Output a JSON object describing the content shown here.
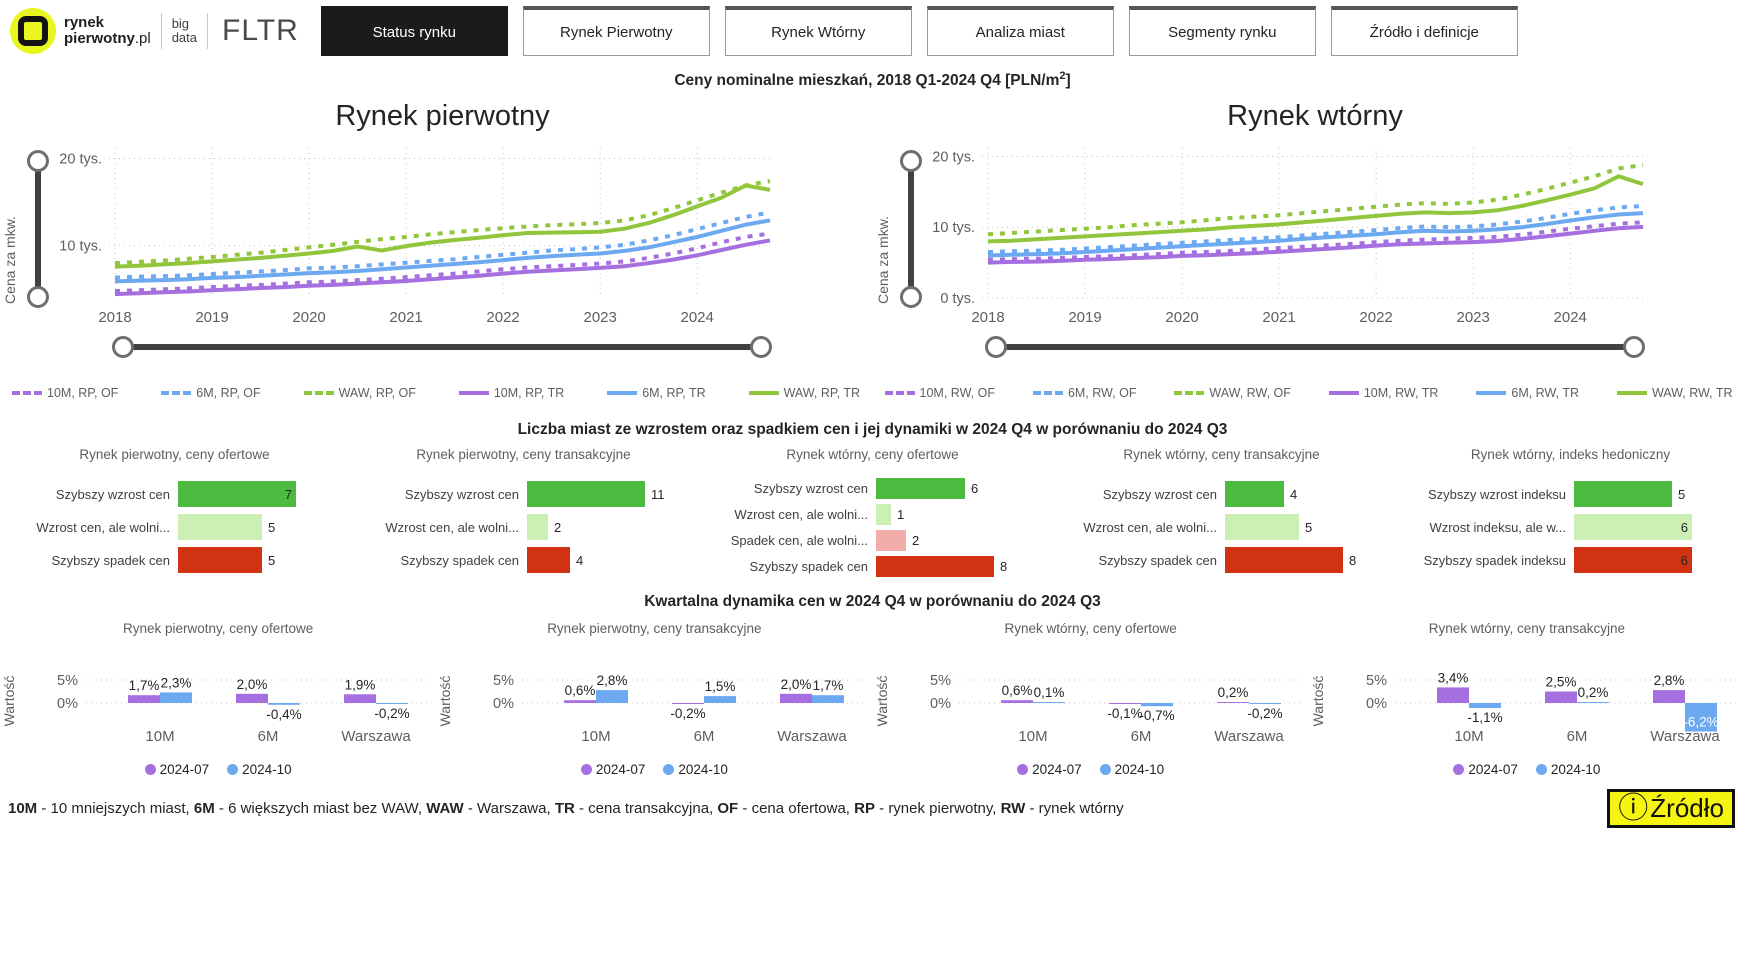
{
  "header": {
    "logo": {
      "brand_top": "rynek",
      "brand_bottom_bold": "pierwotny",
      "brand_bottom_light": ".pl",
      "big": "big",
      "data": "data",
      "fltr": "FLTR"
    },
    "tabs": [
      {
        "label": "Status rynku",
        "active": true
      },
      {
        "label": "Rynek Pierwotny",
        "active": false
      },
      {
        "label": "Rynek Wtórny",
        "active": false
      },
      {
        "label": "Analiza miast",
        "active": false
      },
      {
        "label": "Segmenty rynku",
        "active": false
      },
      {
        "label": "Źródło i definicje",
        "active": false
      }
    ]
  },
  "main_title": {
    "prefix": "Ceny nominalne mieszkań, 2018 Q1-2024 Q4 [PLN/m",
    "sup": "2",
    "suffix": "]"
  },
  "counts_section_title": "Liczba miast ze wzrostem oraz spadkiem cen i jej dynamiki w 2024 Q4 w porównaniu do 2024 Q3",
  "dynamics_section_title": "Kwartalna dynamika cen w 2024 Q4 w porównaniu do 2024 Q3",
  "colors": {
    "purple": "#A66FE0",
    "blue": "#6CA9F0",
    "green": "#91C63C",
    "dark_green": "#4CBB3F",
    "light_green": "#CBEFB4",
    "pink": "#F2ACA9",
    "red": "#D13212",
    "slider": "#414141",
    "grid": "#C8C6C4",
    "text_dark": "#252423",
    "text_gray": "#605E5C",
    "accent_yellow": "#F5F50F",
    "logo_yellow": "#E9F51F"
  },
  "chart_data": [
    {
      "type": "line",
      "title": "Rynek pierwotny",
      "ylabel": "Cena za mkw.",
      "ymin": 4.0,
      "ymax": 21.2,
      "x_tick_labels": [
        "2018",
        "2019",
        "2020",
        "2021",
        "2022",
        "2023",
        "2024"
      ],
      "y_ticks": [
        {
          "label": "20 tys.",
          "value": 20
        },
        {
          "label": "10 tys.",
          "value": 10
        }
      ],
      "series": [
        {
          "name": "10M, RP, OF",
          "color": "#A66FE0",
          "dashed": true,
          "values": [
            4.8,
            4.9,
            5.0,
            5.1,
            5.25,
            5.4,
            5.5,
            5.65,
            5.8,
            5.9,
            6.05,
            6.2,
            6.4,
            6.6,
            6.8,
            7.05,
            7.3,
            7.5,
            7.65,
            7.8,
            7.95,
            8.2,
            8.6,
            9.1,
            9.7,
            10.4,
            11.0,
            11.4
          ]
        },
        {
          "name": "6M, RP, OF",
          "color": "#6CA9F0",
          "dashed": true,
          "values": [
            6.35,
            6.45,
            6.5,
            6.6,
            6.75,
            6.9,
            7.05,
            7.2,
            7.4,
            7.5,
            7.65,
            7.85,
            8.05,
            8.25,
            8.45,
            8.7,
            8.95,
            9.2,
            9.45,
            9.6,
            9.8,
            10.1,
            10.6,
            11.2,
            11.9,
            12.6,
            13.3,
            13.8
          ]
        },
        {
          "name": "WAW, RP, OF",
          "color": "#91C63C",
          "dashed": true,
          "values": [
            8.0,
            8.15,
            8.3,
            8.5,
            8.7,
            8.95,
            9.2,
            9.5,
            9.8,
            10.1,
            10.45,
            10.75,
            11.0,
            11.3,
            11.55,
            11.8,
            12.0,
            12.2,
            12.35,
            12.45,
            12.6,
            12.9,
            13.5,
            14.3,
            15.2,
            16.1,
            16.9,
            17.4
          ]
        },
        {
          "name": "10M, RP, TR",
          "color": "#A66FE0",
          "dashed": false,
          "values": [
            4.45,
            4.55,
            4.65,
            4.75,
            4.9,
            5.0,
            5.15,
            5.25,
            5.4,
            5.5,
            5.65,
            5.8,
            5.95,
            6.15,
            6.35,
            6.55,
            6.8,
            7.0,
            7.15,
            7.3,
            7.45,
            7.65,
            8.0,
            8.4,
            8.9,
            9.5,
            10.1,
            10.6
          ]
        },
        {
          "name": "6M, RP, TR",
          "color": "#6CA9F0",
          "dashed": false,
          "values": [
            5.9,
            6.0,
            6.05,
            6.15,
            6.3,
            6.4,
            6.55,
            6.7,
            6.85,
            6.95,
            7.1,
            7.3,
            7.5,
            7.7,
            7.9,
            8.1,
            8.35,
            8.6,
            8.8,
            8.95,
            9.1,
            9.4,
            9.8,
            10.4,
            11.0,
            11.7,
            12.4,
            12.9
          ]
        },
        {
          "name": "WAW, RP, TR",
          "color": "#91C63C",
          "dashed": false,
          "values": [
            7.6,
            7.7,
            7.85,
            8.0,
            8.2,
            8.4,
            8.6,
            8.85,
            9.1,
            9.4,
            9.9,
            9.45,
            9.95,
            10.35,
            10.65,
            10.9,
            11.2,
            11.45,
            11.5,
            11.55,
            11.6,
            11.95,
            12.6,
            13.5,
            14.5,
            15.5,
            16.9,
            16.4
          ]
        }
      ]
    },
    {
      "type": "line",
      "title": "Rynek wtórny",
      "ylabel": "Cena za mkw.",
      "ymin": 0,
      "ymax": 21.2,
      "x_tick_labels": [
        "2018",
        "2019",
        "2020",
        "2021",
        "2022",
        "2023",
        "2024"
      ],
      "y_ticks": [
        {
          "label": "20 tys.",
          "value": 20
        },
        {
          "label": "10 tys.",
          "value": 10
        },
        {
          "label": "0 tys.",
          "value": 0
        }
      ],
      "series": [
        {
          "name": "10M, RW, OF",
          "color": "#A66FE0",
          "dashed": true,
          "values": [
            5.4,
            5.5,
            5.55,
            5.65,
            5.8,
            5.9,
            6.05,
            6.2,
            6.4,
            6.5,
            6.65,
            6.85,
            7.05,
            7.25,
            7.45,
            7.65,
            7.9,
            8.1,
            8.25,
            8.4,
            8.5,
            8.65,
            8.95,
            9.35,
            9.8,
            10.15,
            10.5,
            10.7
          ]
        },
        {
          "name": "6M, RW, OF",
          "color": "#6CA9F0",
          "dashed": true,
          "values": [
            6.5,
            6.6,
            6.7,
            6.8,
            7.0,
            7.2,
            7.4,
            7.6,
            7.8,
            8.0,
            8.2,
            8.4,
            8.6,
            8.85,
            9.1,
            9.35,
            9.6,
            9.9,
            10.1,
            10.0,
            10.1,
            10.4,
            10.8,
            11.3,
            11.9,
            12.4,
            12.8,
            13.0
          ]
        },
        {
          "name": "WAW, RW, OF",
          "color": "#91C63C",
          "dashed": true,
          "values": [
            9.0,
            9.2,
            9.4,
            9.6,
            9.8,
            10.0,
            10.3,
            10.5,
            10.7,
            11.0,
            11.3,
            11.5,
            11.7,
            12.0,
            12.3,
            12.6,
            12.9,
            13.2,
            13.4,
            13.3,
            13.5,
            13.9,
            14.6,
            15.4,
            16.3,
            17.2,
            18.3,
            18.8
          ]
        },
        {
          "name": "10M, RW, TR",
          "color": "#A66FE0",
          "dashed": false,
          "values": [
            5.0,
            5.1,
            5.15,
            5.25,
            5.4,
            5.5,
            5.65,
            5.75,
            5.95,
            6.05,
            6.2,
            6.35,
            6.55,
            6.75,
            6.95,
            7.15,
            7.4,
            7.6,
            7.7,
            7.8,
            7.9,
            8.05,
            8.35,
            8.7,
            9.1,
            9.5,
            9.85,
            10.05
          ]
        },
        {
          "name": "6M, RW, TR",
          "color": "#6CA9F0",
          "dashed": false,
          "values": [
            6.0,
            6.1,
            6.2,
            6.3,
            6.5,
            6.7,
            6.9,
            7.1,
            7.3,
            7.5,
            7.7,
            7.9,
            8.1,
            8.35,
            8.6,
            8.8,
            9.0,
            9.3,
            9.5,
            9.4,
            9.5,
            9.7,
            10.0,
            10.45,
            10.95,
            11.4,
            11.8,
            12.0
          ]
        },
        {
          "name": "WAW, RW, TR",
          "color": "#91C63C",
          "dashed": false,
          "values": [
            8.0,
            8.1,
            8.3,
            8.5,
            8.7,
            8.9,
            9.1,
            9.3,
            9.5,
            9.7,
            10.0,
            10.2,
            10.4,
            10.7,
            11.0,
            11.3,
            11.6,
            11.9,
            12.1,
            12.0,
            12.1,
            12.4,
            13.0,
            13.8,
            14.6,
            15.5,
            17.2,
            16.1
          ]
        }
      ]
    },
    {
      "type": "bar",
      "title": "Rynek pierwotny, ceny ofertowe",
      "rows": [
        {
          "label": "Szybszy wzrost cen",
          "value": 7,
          "color": "#4CBB3F",
          "label_inside": true
        },
        {
          "label": "Wzrost cen, ale wolni...",
          "value": 5,
          "color": "#CBEFB4",
          "label_inside": false
        },
        {
          "label": "Szybszy spadek cen",
          "value": 5,
          "color": "#D13212",
          "label_inside": false
        }
      ]
    },
    {
      "type": "bar",
      "title": "Rynek pierwotny, ceny transakcyjne",
      "rows": [
        {
          "label": "Szybszy wzrost cen",
          "value": 11,
          "color": "#4CBB3F",
          "label_inside": false
        },
        {
          "label": "Wzrost cen, ale wolni...",
          "value": 2,
          "color": "#CBEFB4",
          "label_inside": false
        },
        {
          "label": "Szybszy spadek cen",
          "value": 4,
          "color": "#D13212",
          "label_inside": false
        }
      ]
    },
    {
      "type": "bar",
      "title": "Rynek wtórny, ceny ofertowe",
      "rows": [
        {
          "label": "Szybszy wzrost cen",
          "value": 6,
          "color": "#4CBB3F",
          "label_inside": false
        },
        {
          "label": "Wzrost cen, ale wolni...",
          "value": 1,
          "color": "#CBEFB4",
          "label_inside": false
        },
        {
          "label": "Spadek cen, ale wolni...",
          "value": 2,
          "color": "#F2ACA9",
          "label_inside": false
        },
        {
          "label": "Szybszy spadek cen",
          "value": 8,
          "color": "#D13212",
          "label_inside": false
        }
      ]
    },
    {
      "type": "bar",
      "title": "Rynek wtórny, ceny transakcyjne",
      "rows": [
        {
          "label": "Szybszy wzrost cen",
          "value": 4,
          "color": "#4CBB3F",
          "label_inside": false
        },
        {
          "label": "Wzrost cen, ale wolni...",
          "value": 5,
          "color": "#CBEFB4",
          "label_inside": false
        },
        {
          "label": "Szybszy spadek cen",
          "value": 8,
          "color": "#D13212",
          "label_inside": false
        }
      ]
    },
    {
      "type": "bar",
      "title": "Rynek wtórny, indeks hedoniczny",
      "rows": [
        {
          "label": "Szybszy wzrost indeksu",
          "value": 5,
          "color": "#4CBB3F",
          "label_inside": false
        },
        {
          "label": "Wzrost indeksu, ale w...",
          "value": 6,
          "color": "#CBEFB4",
          "label_inside": true
        },
        {
          "label": "Szybszy spadek indeksu",
          "value": 6,
          "color": "#D13212",
          "label_inside": true
        }
      ]
    },
    {
      "type": "bar-grouped",
      "title": "Rynek pierwotny, ceny ofertowe",
      "ylabel": "Wartość",
      "y_ticks": [
        {
          "label": "5%",
          "value": 5
        },
        {
          "label": "0%",
          "value": 0
        }
      ],
      "categories": [
        "10M",
        "6M",
        "Warszawa"
      ],
      "series": [
        {
          "name": "2024-07",
          "color": "#A66FE0",
          "values": [
            1.7,
            2.0,
            1.9
          ],
          "labels": [
            "1,7%",
            "2,0%",
            "1,9%"
          ],
          "label_inside": [
            false,
            false,
            false
          ]
        },
        {
          "name": "2024-10",
          "color": "#6CA9F0",
          "values": [
            2.3,
            -0.4,
            -0.2
          ],
          "labels": [
            "2,3%",
            "-0,4%",
            "-0,2%"
          ],
          "label_inside": [
            false,
            false,
            false
          ]
        }
      ]
    },
    {
      "type": "bar-grouped",
      "title": "Rynek pierwotny, ceny transakcyjne",
      "ylabel": "Wartość",
      "y_ticks": [
        {
          "label": "5%",
          "value": 5
        },
        {
          "label": "0%",
          "value": 0
        }
      ],
      "categories": [
        "10M",
        "6M",
        "Warszawa"
      ],
      "series": [
        {
          "name": "2024-07",
          "color": "#A66FE0",
          "values": [
            0.6,
            -0.2,
            2.0
          ],
          "labels": [
            "0,6%",
            "-0,2%",
            "2,0%"
          ],
          "label_inside": [
            false,
            false,
            false
          ]
        },
        {
          "name": "2024-10",
          "color": "#6CA9F0",
          "values": [
            2.8,
            1.5,
            1.7
          ],
          "labels": [
            "2,8%",
            "1,5%",
            "1,7%"
          ],
          "label_inside": [
            false,
            false,
            false
          ]
        }
      ]
    },
    {
      "type": "bar-grouped",
      "title": "Rynek wtórny, ceny ofertowe",
      "ylabel": "Wartość",
      "y_ticks": [
        {
          "label": "5%",
          "value": 5
        },
        {
          "label": "0%",
          "value": 0
        }
      ],
      "categories": [
        "10M",
        "6M",
        "Warszawa"
      ],
      "series": [
        {
          "name": "2024-07",
          "color": "#A66FE0",
          "values": [
            0.6,
            -0.1,
            0.2
          ],
          "labels": [
            "0,6%",
            "-0,1%",
            "0,2%"
          ],
          "label_inside": [
            false,
            false,
            false
          ]
        },
        {
          "name": "2024-10",
          "color": "#6CA9F0",
          "values": [
            0.1,
            -0.7,
            -0.2
          ],
          "labels": [
            "0,1%",
            "-0,7%",
            "-0,2%"
          ],
          "label_inside": [
            false,
            false,
            false
          ]
        }
      ]
    },
    {
      "type": "bar-grouped",
      "title": "Rynek wtórny, ceny transakcyjne",
      "ylabel": "Wartość",
      "y_ticks": [
        {
          "label": "5%",
          "value": 5
        },
        {
          "label": "0%",
          "value": 0
        }
      ],
      "categories": [
        "10M",
        "6M",
        "Warszawa"
      ],
      "series": [
        {
          "name": "2024-07",
          "color": "#A66FE0",
          "values": [
            3.4,
            2.5,
            2.8
          ],
          "labels": [
            "3,4%",
            "2,5%",
            "2,8%"
          ],
          "label_inside": [
            false,
            false,
            false
          ]
        },
        {
          "name": "2024-10",
          "color": "#6CA9F0",
          "values": [
            -1.1,
            0.2,
            -6.2
          ],
          "labels": [
            "-1,1%",
            "0,2%",
            "-6,2%"
          ],
          "label_inside": [
            false,
            false,
            true
          ]
        }
      ]
    }
  ],
  "footer": {
    "definitions": [
      {
        "term": "10M",
        "text": " - 10 mniejszych miast, "
      },
      {
        "term": "6M",
        "text": " - 6 większych miast bez WAW, "
      },
      {
        "term": "WAW",
        "text": " - Warszawa, "
      },
      {
        "term": "TR",
        "text": " - cena transakcyjna, "
      },
      {
        "term": "OF",
        "text": " - cena ofertowa, "
      },
      {
        "term": "RP",
        "text": " - rynek pierwotny, "
      },
      {
        "term": "RW",
        "text": " - rynek wtórny"
      }
    ],
    "info_icon": "ⓘ",
    "source_label": "Źródło"
  }
}
